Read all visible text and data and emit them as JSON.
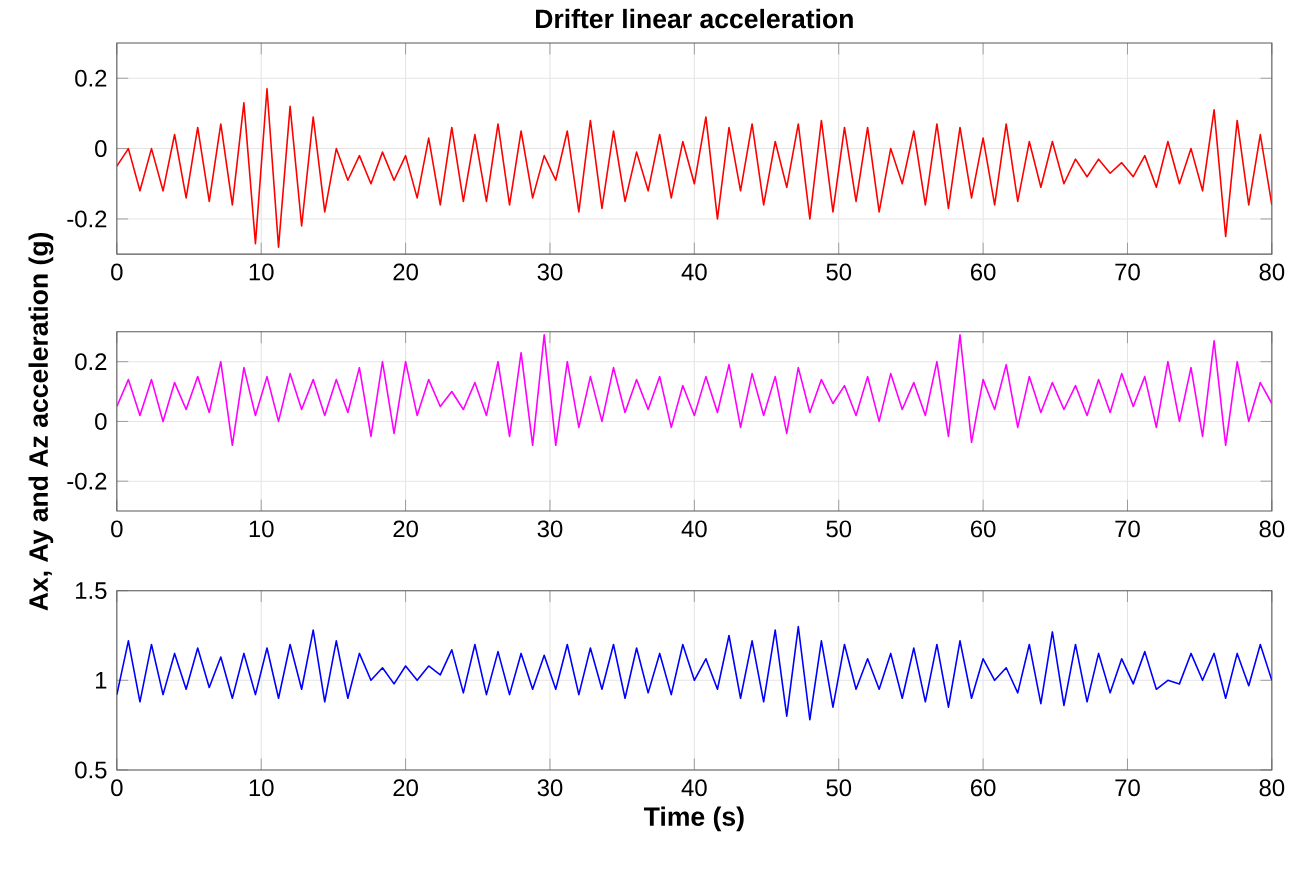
{
  "chart_data": [
    {
      "type": "line",
      "title": "Drifter linear acceleration",
      "x": [
        0,
        0.8,
        1.6,
        2.4,
        3.2,
        4,
        4.8,
        5.6,
        6.4,
        7.2,
        8,
        8.8,
        9.6,
        10.4,
        11.2,
        12,
        12.8,
        13.6,
        14.4,
        15.2,
        16,
        16.8,
        17.6,
        18.4,
        19.2,
        20,
        20.8,
        21.6,
        22.4,
        23.2,
        24,
        24.8,
        25.6,
        26.4,
        27.2,
        28,
        28.8,
        29.6,
        30.4,
        31.2,
        32,
        32.8,
        33.6,
        34.4,
        35.2,
        36,
        36.8,
        37.6,
        38.4,
        39.2,
        40,
        40.8,
        41.6,
        42.4,
        43.2,
        44,
        44.8,
        45.6,
        46.4,
        47.2,
        48,
        48.8,
        49.6,
        50.4,
        51.2,
        52,
        52.8,
        53.6,
        54.4,
        55.2,
        56,
        56.8,
        57.6,
        58.4,
        59.2,
        60,
        60.8,
        61.6,
        62.4,
        63.2,
        64,
        64.8,
        65.6,
        66.4,
        67.2,
        68,
        68.8,
        69.6,
        70.4,
        71.2,
        72,
        72.8,
        73.6,
        74.4,
        75.2,
        76,
        76.8,
        77.6,
        78.4,
        79.2,
        80
      ],
      "series": [
        {
          "color": "#ff0000",
          "values": [
            -0.05,
            0.0,
            -0.12,
            0.0,
            -0.12,
            0.04,
            -0.14,
            0.06,
            -0.15,
            0.07,
            -0.16,
            0.13,
            -0.27,
            0.17,
            -0.28,
            0.12,
            -0.22,
            0.09,
            -0.18,
            0.0,
            -0.09,
            -0.02,
            -0.1,
            -0.01,
            -0.09,
            -0.02,
            -0.14,
            0.03,
            -0.16,
            0.06,
            -0.15,
            0.04,
            -0.15,
            0.07,
            -0.16,
            0.05,
            -0.14,
            -0.02,
            -0.09,
            0.05,
            -0.18,
            0.08,
            -0.17,
            0.05,
            -0.15,
            -0.01,
            -0.12,
            0.04,
            -0.14,
            0.02,
            -0.1,
            0.09,
            -0.2,
            0.06,
            -0.12,
            0.07,
            -0.16,
            0.02,
            -0.11,
            0.07,
            -0.2,
            0.08,
            -0.18,
            0.06,
            -0.15,
            0.06,
            -0.18,
            0.0,
            -0.1,
            0.05,
            -0.16,
            0.07,
            -0.17,
            0.06,
            -0.14,
            0.03,
            -0.16,
            0.07,
            -0.15,
            0.02,
            -0.11,
            0.02,
            -0.1,
            -0.03,
            -0.08,
            -0.03,
            -0.07,
            -0.04,
            -0.08,
            -0.02,
            -0.11,
            0.02,
            -0.1,
            0.0,
            -0.12,
            0.11,
            -0.25,
            0.08,
            -0.16,
            0.04,
            -0.16
          ]
        }
      ],
      "xlim": [
        0,
        80
      ],
      "ylim": [
        -0.3,
        0.3
      ],
      "xticks": [
        0,
        10,
        20,
        30,
        40,
        50,
        60,
        70,
        80
      ],
      "yticks": [
        -0.2,
        0,
        0.2
      ],
      "grid": true
    },
    {
      "type": "line",
      "ylabel": "Ax, Ay and Az acceleration (g)",
      "x": [
        0,
        0.8,
        1.6,
        2.4,
        3.2,
        4,
        4.8,
        5.6,
        6.4,
        7.2,
        8,
        8.8,
        9.6,
        10.4,
        11.2,
        12,
        12.8,
        13.6,
        14.4,
        15.2,
        16,
        16.8,
        17.6,
        18.4,
        19.2,
        20,
        20.8,
        21.6,
        22.4,
        23.2,
        24,
        24.8,
        25.6,
        26.4,
        27.2,
        28,
        28.8,
        29.6,
        30.4,
        31.2,
        32,
        32.8,
        33.6,
        34.4,
        35.2,
        36,
        36.8,
        37.6,
        38.4,
        39.2,
        40,
        40.8,
        41.6,
        42.4,
        43.2,
        44,
        44.8,
        45.6,
        46.4,
        47.2,
        48,
        48.8,
        49.6,
        50.4,
        51.2,
        52,
        52.8,
        53.6,
        54.4,
        55.2,
        56,
        56.8,
        57.6,
        58.4,
        59.2,
        60,
        60.8,
        61.6,
        62.4,
        63.2,
        64,
        64.8,
        65.6,
        66.4,
        67.2,
        68,
        68.8,
        69.6,
        70.4,
        71.2,
        72,
        72.8,
        73.6,
        74.4,
        75.2,
        76,
        76.8,
        77.6,
        78.4,
        79.2,
        80
      ],
      "series": [
        {
          "color": "#ff00ff",
          "values": [
            0.05,
            0.14,
            0.02,
            0.14,
            0.0,
            0.13,
            0.04,
            0.15,
            0.03,
            0.2,
            -0.08,
            0.18,
            0.02,
            0.15,
            0.0,
            0.16,
            0.04,
            0.14,
            0.02,
            0.14,
            0.03,
            0.18,
            -0.05,
            0.2,
            -0.04,
            0.2,
            0.02,
            0.14,
            0.05,
            0.1,
            0.04,
            0.13,
            0.02,
            0.2,
            -0.05,
            0.23,
            -0.08,
            0.29,
            -0.08,
            0.2,
            -0.02,
            0.15,
            0.0,
            0.18,
            0.03,
            0.14,
            0.04,
            0.15,
            -0.02,
            0.12,
            0.02,
            0.15,
            0.03,
            0.19,
            -0.02,
            0.16,
            0.02,
            0.15,
            -0.04,
            0.18,
            0.03,
            0.14,
            0.06,
            0.12,
            0.02,
            0.15,
            0.0,
            0.16,
            0.04,
            0.13,
            0.02,
            0.2,
            -0.05,
            0.29,
            -0.07,
            0.14,
            0.04,
            0.19,
            -0.02,
            0.15,
            0.03,
            0.13,
            0.04,
            0.12,
            0.02,
            0.14,
            0.03,
            0.16,
            0.05,
            0.15,
            -0.02,
            0.2,
            0.0,
            0.18,
            -0.05,
            0.27,
            -0.08,
            0.2,
            0.0,
            0.13,
            0.06
          ]
        }
      ],
      "xlim": [
        0,
        80
      ],
      "ylim": [
        -0.3,
        0.3
      ],
      "xticks": [
        0,
        10,
        20,
        30,
        40,
        50,
        60,
        70,
        80
      ],
      "yticks": [
        -0.2,
        0,
        0.2
      ],
      "grid": true
    },
    {
      "type": "line",
      "xlabel": "Time (s)",
      "x": [
        0,
        0.8,
        1.6,
        2.4,
        3.2,
        4,
        4.8,
        5.6,
        6.4,
        7.2,
        8,
        8.8,
        9.6,
        10.4,
        11.2,
        12,
        12.8,
        13.6,
        14.4,
        15.2,
        16,
        16.8,
        17.6,
        18.4,
        19.2,
        20,
        20.8,
        21.6,
        22.4,
        23.2,
        24,
        24.8,
        25.6,
        26.4,
        27.2,
        28,
        28.8,
        29.6,
        30.4,
        31.2,
        32,
        32.8,
        33.6,
        34.4,
        35.2,
        36,
        36.8,
        37.6,
        38.4,
        39.2,
        40,
        40.8,
        41.6,
        42.4,
        43.2,
        44,
        44.8,
        45.6,
        46.4,
        47.2,
        48,
        48.8,
        49.6,
        50.4,
        51.2,
        52,
        52.8,
        53.6,
        54.4,
        55.2,
        56,
        56.8,
        57.6,
        58.4,
        59.2,
        60,
        60.8,
        61.6,
        62.4,
        63.2,
        64,
        64.8,
        65.6,
        66.4,
        67.2,
        68,
        68.8,
        69.6,
        70.4,
        71.2,
        72,
        72.8,
        73.6,
        74.4,
        75.2,
        76,
        76.8,
        77.6,
        78.4,
        79.2,
        80
      ],
      "series": [
        {
          "color": "#0000ff",
          "values": [
            0.92,
            1.22,
            0.88,
            1.2,
            0.92,
            1.15,
            0.95,
            1.18,
            0.96,
            1.13,
            0.9,
            1.15,
            0.92,
            1.18,
            0.9,
            1.2,
            0.95,
            1.28,
            0.88,
            1.22,
            0.9,
            1.15,
            1.0,
            1.07,
            0.98,
            1.08,
            1.0,
            1.08,
            1.03,
            1.17,
            0.93,
            1.2,
            0.92,
            1.16,
            0.92,
            1.15,
            0.95,
            1.14,
            0.95,
            1.2,
            0.92,
            1.18,
            0.95,
            1.2,
            0.9,
            1.18,
            0.93,
            1.15,
            0.92,
            1.2,
            1.0,
            1.12,
            0.95,
            1.25,
            0.9,
            1.22,
            0.88,
            1.28,
            0.8,
            1.3,
            0.78,
            1.22,
            0.85,
            1.2,
            0.95,
            1.12,
            0.95,
            1.15,
            0.9,
            1.18,
            0.88,
            1.2,
            0.85,
            1.22,
            0.9,
            1.12,
            1.0,
            1.07,
            0.93,
            1.2,
            0.87,
            1.27,
            0.86,
            1.2,
            0.88,
            1.15,
            0.93,
            1.12,
            0.98,
            1.16,
            0.95,
            1.0,
            0.98,
            1.15,
            1.0,
            1.15,
            0.9,
            1.15,
            0.97,
            1.2,
            1.0
          ]
        }
      ],
      "xlim": [
        0,
        80
      ],
      "ylim": [
        0.5,
        1.5
      ],
      "xticks": [
        0,
        10,
        20,
        30,
        40,
        50,
        60,
        70,
        80
      ],
      "yticks": [
        0.5,
        1,
        1.5
      ],
      "grid": true
    }
  ]
}
